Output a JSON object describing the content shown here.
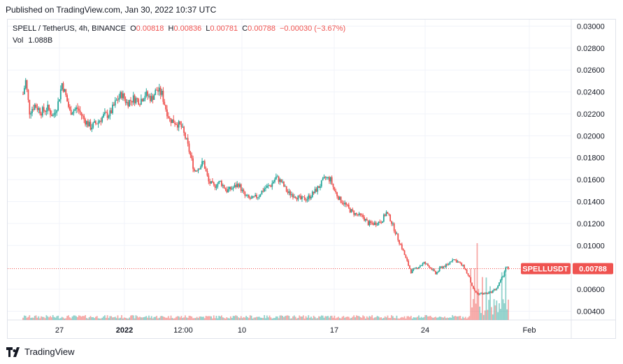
{
  "published": "Published on TradingView.com, Jan 30, 2022 10:37 UTC",
  "legend": {
    "symbol": "SPELL / TetherUS, 4h, BINANCE",
    "o_label": "O",
    "o": "0.00818",
    "h_label": "H",
    "h": "0.00836",
    "l_label": "L",
    "l": "0.00781",
    "c_label": "C",
    "c": "0.00788",
    "change": "−0.00030 (−3.67%)",
    "vol_label": "Vol",
    "vol": "1.088B"
  },
  "price_tag": {
    "symbol": "SPELLUSDT",
    "price": "0.00788"
  },
  "footer": {
    "brand": "TradingView"
  },
  "colors": {
    "up": "#26a69a",
    "down": "#ef5350",
    "grid": "#f0f3fa"
  },
  "chart_data": {
    "type": "candlestick",
    "interval": "4h",
    "y_ticks": [
      "0.03000",
      "0.02800",
      "0.02600",
      "0.02400",
      "0.02200",
      "0.02000",
      "0.01800",
      "0.01600",
      "0.01400",
      "0.01200",
      "0.01000",
      "0.00600",
      "0.00400"
    ],
    "ylim": [
      0.0032,
      0.0306
    ],
    "x_ticks": [
      "27",
      "2022",
      "12:00",
      "10",
      "17",
      "24",
      "Feb"
    ],
    "last_price": 0.00788,
    "close_path": [
      [
        0,
        0.0238
      ],
      [
        2,
        0.025
      ],
      [
        5,
        0.0222
      ],
      [
        9,
        0.0228
      ],
      [
        14,
        0.0222
      ],
      [
        19,
        0.0225
      ],
      [
        23,
        0.0218
      ],
      [
        27,
        0.023
      ],
      [
        30,
        0.0248
      ],
      [
        33,
        0.0236
      ],
      [
        36,
        0.0222
      ],
      [
        42,
        0.0225
      ],
      [
        47,
        0.0215
      ],
      [
        52,
        0.0208
      ],
      [
        57,
        0.0212
      ],
      [
        62,
        0.0218
      ],
      [
        67,
        0.022
      ],
      [
        72,
        0.0232
      ],
      [
        76,
        0.0238
      ],
      [
        80,
        0.023
      ],
      [
        85,
        0.0234
      ],
      [
        90,
        0.0232
      ],
      [
        94,
        0.0238
      ],
      [
        99,
        0.0234
      ],
      [
        103,
        0.0242
      ],
      [
        107,
        0.0238
      ],
      [
        110,
        0.0225
      ],
      [
        113,
        0.0215
      ],
      [
        118,
        0.0212
      ],
      [
        122,
        0.0208
      ],
      [
        126,
        0.0195
      ],
      [
        129,
        0.0182
      ],
      [
        132,
        0.0168
      ],
      [
        136,
        0.0172
      ],
      [
        139,
        0.0176
      ],
      [
        143,
        0.0158
      ],
      [
        147,
        0.0154
      ],
      [
        152,
        0.0158
      ],
      [
        157,
        0.015
      ],
      [
        161,
        0.0152
      ],
      [
        166,
        0.0156
      ],
      [
        171,
        0.0145
      ],
      [
        176,
        0.0142
      ],
      [
        181,
        0.0145
      ],
      [
        186,
        0.0152
      ],
      [
        191,
        0.0155
      ],
      [
        195,
        0.0162
      ],
      [
        199,
        0.0158
      ],
      [
        204,
        0.0148
      ],
      [
        209,
        0.0146
      ],
      [
        214,
        0.0142
      ],
      [
        219,
        0.0143
      ],
      [
        224,
        0.0148
      ],
      [
        229,
        0.0155
      ],
      [
        233,
        0.0162
      ],
      [
        237,
        0.016
      ],
      [
        240,
        0.015
      ],
      [
        244,
        0.0142
      ],
      [
        248,
        0.0138
      ],
      [
        252,
        0.0132
      ],
      [
        257,
        0.0128
      ],
      [
        262,
        0.0126
      ],
      [
        266,
        0.012
      ],
      [
        271,
        0.012
      ],
      [
        276,
        0.0122
      ],
      [
        280,
        0.013
      ],
      [
        283,
        0.0124
      ],
      [
        286,
        0.0115
      ],
      [
        289,
        0.0106
      ],
      [
        292,
        0.0098
      ],
      [
        295,
        0.0088
      ],
      [
        299,
        0.0076
      ],
      [
        304,
        0.008
      ],
      [
        309,
        0.0084
      ],
      [
        314,
        0.008
      ],
      [
        318,
        0.0074
      ],
      [
        322,
        0.008
      ],
      [
        327,
        0.0082
      ],
      [
        331,
        0.0088
      ],
      [
        335,
        0.0085
      ],
      [
        340,
        0.008
      ],
      [
        344,
        0.007
      ],
      [
        347,
        0.006
      ],
      [
        350,
        0.0056
      ],
      [
        355,
        0.0056
      ],
      [
        360,
        0.0057
      ],
      [
        365,
        0.0061
      ],
      [
        369,
        0.007
      ],
      [
        372,
        0.008
      ],
      [
        374,
        0.00788
      ]
    ],
    "volume_note": "Volume histogram along the bottom with spikes near the end"
  }
}
